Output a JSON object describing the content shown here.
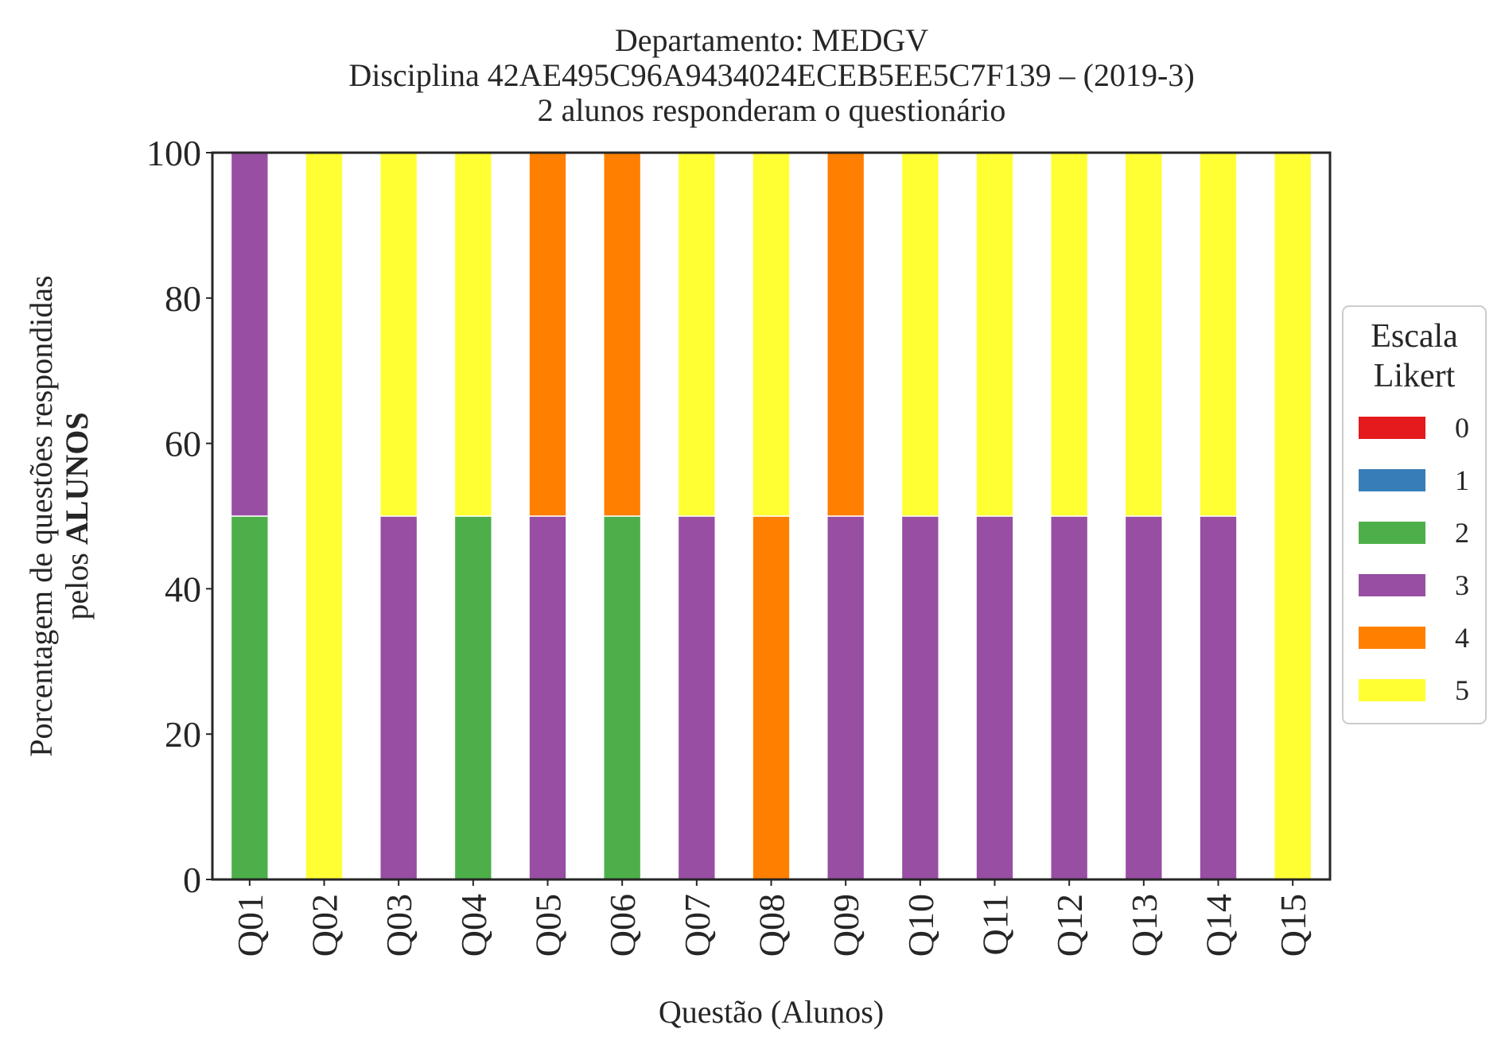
{
  "chart_data": {
    "type": "bar",
    "stacked": true,
    "title": [
      "Departamento: MEDGV",
      "Disciplina 42AE495C96A9434024ECEB5EE5C7F139 – (2019-3)",
      "2 alunos responderam o questionário"
    ],
    "xlabel": "Questão (Alunos)",
    "ylabel": {
      "line1": "Porcentagem de questões respondidas",
      "line2_prefix": "pelos ",
      "line2_bold": "ALUNOS"
    },
    "ylim": [
      0,
      100
    ],
    "yticks": [
      0,
      20,
      40,
      60,
      80,
      100
    ],
    "grid": false,
    "legend": {
      "title": [
        "Escala",
        "Likert"
      ],
      "position": "right-center"
    },
    "categories": [
      "Q01",
      "Q02",
      "Q03",
      "Q04",
      "Q05",
      "Q06",
      "Q07",
      "Q08",
      "Q09",
      "Q10",
      "Q11",
      "Q12",
      "Q13",
      "Q14",
      "Q15"
    ],
    "series": [
      {
        "name": "0",
        "color": "#e41a1c",
        "values": [
          0,
          0,
          0,
          0,
          0,
          0,
          0,
          0,
          0,
          0,
          0,
          0,
          0,
          0,
          0
        ]
      },
      {
        "name": "1",
        "color": "#377eb8",
        "values": [
          0,
          0,
          0,
          0,
          0,
          0,
          0,
          0,
          0,
          0,
          0,
          0,
          0,
          0,
          0
        ]
      },
      {
        "name": "2",
        "color": "#4daf4a",
        "values": [
          50,
          0,
          0,
          50,
          0,
          50,
          0,
          0,
          0,
          0,
          0,
          0,
          0,
          0,
          0
        ]
      },
      {
        "name": "3",
        "color": "#984ea3",
        "values": [
          50,
          0,
          50,
          0,
          50,
          0,
          50,
          0,
          50,
          50,
          50,
          50,
          50,
          50,
          0
        ]
      },
      {
        "name": "4",
        "color": "#ff7f00",
        "values": [
          0,
          0,
          0,
          0,
          50,
          50,
          0,
          50,
          50,
          0,
          0,
          0,
          0,
          0,
          0
        ]
      },
      {
        "name": "5",
        "color": "#ffff33",
        "values": [
          0,
          100,
          50,
          50,
          0,
          0,
          50,
          50,
          0,
          50,
          50,
          50,
          50,
          50,
          100
        ]
      }
    ]
  }
}
